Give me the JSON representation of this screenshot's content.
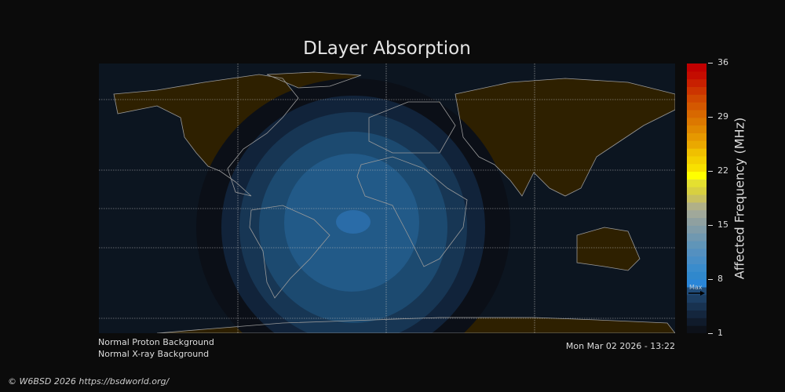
{
  "title": "DLayer Absorption",
  "notes": {
    "proton": "Normal Proton Background",
    "xray": "Normal X-ray Background",
    "timestamp": "Mon Mar 02 2026 - 13:22"
  },
  "copyright": "© W6BSD 2026 https://bsdworld.org/",
  "colorbar": {
    "label": "Affected Frequency (MHz)",
    "ticks": [
      "36",
      "29",
      "22",
      "15",
      "8",
      "1"
    ],
    "range": [
      1,
      36
    ],
    "max_marker": {
      "label": "Max",
      "value": 6
    },
    "colors": [
      "#0d1119",
      "#101b2b",
      "#14263d",
      "#183250",
      "#1c3e62",
      "#214c78",
      "#2a86d8",
      "#3088cc",
      "#3a8ccc",
      "#488ec6",
      "#5490c0",
      "#6095b8",
      "#7098b0",
      "#809ca8",
      "#8fa0a0",
      "#a0a89a",
      "#b0b088",
      "#c8c060",
      "#d8d040",
      "#e4e030",
      "#ffff00",
      "#f8e000",
      "#f4d000",
      "#f0c000",
      "#eaa800",
      "#e69800",
      "#e08800",
      "#dc7800",
      "#d86800",
      "#d45800",
      "#d04800",
      "#cc3400",
      "#c82000",
      "#c40c00",
      "#c00000"
    ]
  },
  "map_colors": {
    "ocean": "#0c1520",
    "land": "#2e2000",
    "absorption": [
      "#0b0f17",
      "#11233a",
      "#173654",
      "#1c4a70",
      "#225a88",
      "#2a6ca8"
    ]
  }
}
